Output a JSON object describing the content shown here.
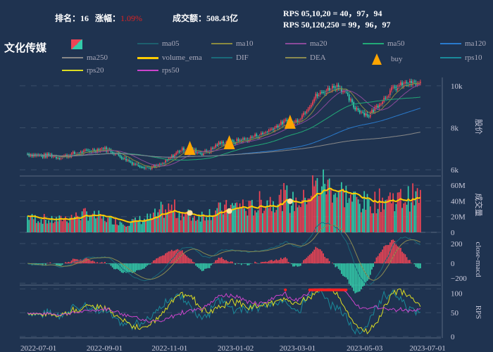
{
  "header": {
    "rank_label": "排名：",
    "rank": "16",
    "change_label": "涨幅：",
    "change": "1.09%",
    "amount_label": "成交额：",
    "amount": "508.43亿",
    "rps_line1": "RPS 05,10,20 = 40，97，94",
    "rps_line2": "RPS 50,120,250 = 99，96，97",
    "sector": "文化传媒"
  },
  "legend": [
    {
      "name": "",
      "color": "#ee4455",
      "icon": "candle"
    },
    {
      "name": "ma05",
      "color": "#1d5f6e"
    },
    {
      "name": "ma10",
      "color": "#8a8a40"
    },
    {
      "name": "ma20",
      "color": "#8a4a9a"
    },
    {
      "name": "ma50",
      "color": "#22aa77"
    },
    {
      "name": "ma120",
      "color": "#2a7acc"
    },
    {
      "name": "ma250",
      "color": "#888888"
    },
    {
      "name": "volume_ema",
      "color": "#ffcc00"
    },
    {
      "name": "DIF",
      "color": "#1a6a7a"
    },
    {
      "name": "DEA",
      "color": "#8a8a50"
    },
    {
      "name": "buy",
      "color": "#ffa500",
      "icon": "triangle"
    },
    {
      "name": "rps10",
      "color": "#1a8a9a"
    },
    {
      "name": "rps20",
      "color": "#dddd22"
    },
    {
      "name": "rps50",
      "color": "#cc44cc"
    }
  ],
  "colors": {
    "up": "#ee4455",
    "down": "#33ccaa",
    "bg": "#1f3350"
  },
  "chart_data": {
    "type": "candlestick",
    "x_ticks": [
      "2022-07-01",
      "2022-09-01",
      "2022-11-01",
      "2023-01-02",
      "2023-03-01",
      "2023-05-03",
      "2023-07-01"
    ],
    "panels": [
      {
        "ylabel": "股价",
        "ticks": [
          "6k",
          "8k",
          "10k"
        ],
        "ylim": [
          5700,
          10400
        ]
      },
      {
        "ylabel": "成交量",
        "ticks": [
          "0",
          "20M",
          "40M",
          "60M"
        ],
        "ylim": [
          0,
          70000000
        ]
      },
      {
        "ylabel": "close-macd",
        "ticks": [
          "−200",
          "0",
          "200"
        ],
        "ylim": [
          -220,
          300
        ]
      },
      {
        "ylabel": "RPS",
        "ticks": [
          "0",
          "50",
          "100"
        ],
        "ylim": [
          -3,
          105
        ]
      }
    ],
    "weekly_close": [
      6750,
      6700,
      6650,
      6700,
      6600,
      6650,
      6750,
      6800,
      6900,
      6950,
      7000,
      6900,
      6700,
      6500,
      6300,
      6200,
      6100,
      6150,
      6300,
      6600,
      6900,
      7000,
      6900,
      6800,
      6900,
      7200,
      7300,
      7300,
      7400,
      7450,
      7600,
      7700,
      7900,
      8100,
      8300,
      8200,
      8500,
      9000,
      9500,
      9700,
      9900,
      10000,
      9600,
      9000,
      8800,
      8600,
      9000,
      9400,
      9800,
      10000,
      10100,
      10100
    ],
    "weekly_volume_m": [
      20,
      18,
      17,
      15,
      16,
      18,
      20,
      22,
      24,
      20,
      18,
      16,
      14,
      12,
      14,
      16,
      18,
      22,
      28,
      30,
      25,
      22,
      20,
      22,
      25,
      28,
      30,
      32,
      35,
      30,
      32,
      38,
      40,
      42,
      45,
      38,
      40,
      50,
      58,
      62,
      58,
      52,
      48,
      42,
      38,
      36,
      40,
      42,
      44,
      42,
      44,
      45
    ],
    "buy_dates": [
      "2022-11-20",
      "2022-12-27",
      "2023-02-22"
    ],
    "date_range": [
      "2022-06-20",
      "2023-06-25"
    ]
  }
}
